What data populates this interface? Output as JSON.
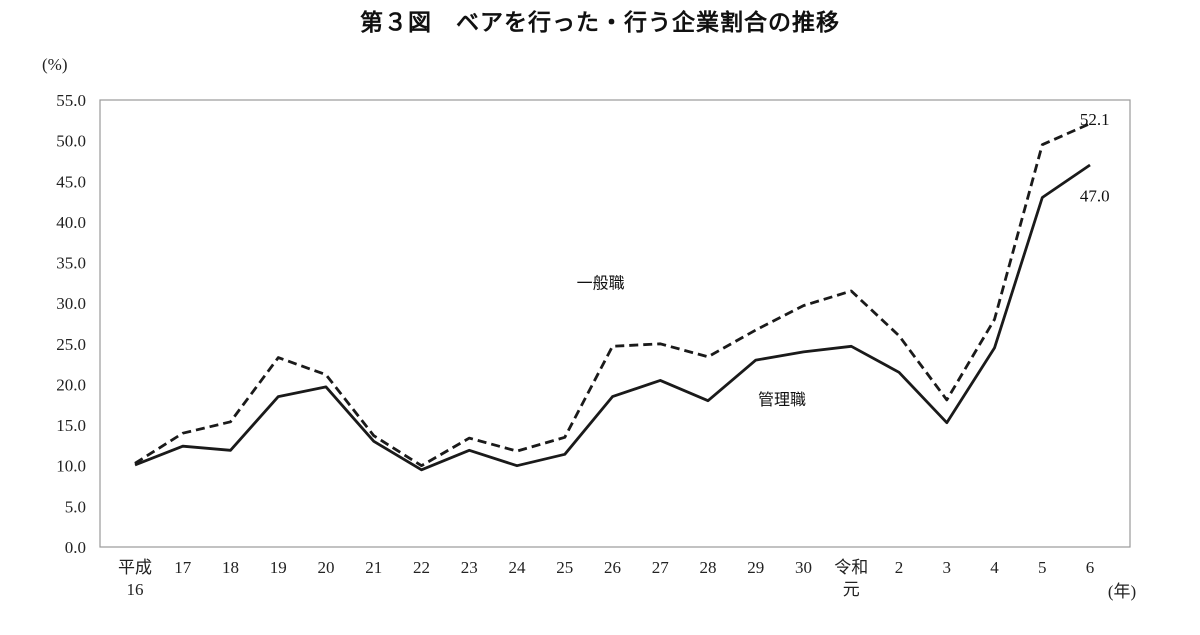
{
  "title": "第３図　ベアを行った・行う企業割合の推移",
  "chart_data": {
    "type": "line",
    "title": "第３図　ベアを行った・行う企業割合の推移",
    "y_unit_label": "(%)",
    "x_unit_label": "(年)",
    "ylim": [
      0,
      55
    ],
    "ytick_step": 5,
    "yticks": [
      "0.0",
      "5.0",
      "10.0",
      "15.0",
      "20.0",
      "25.0",
      "30.0",
      "35.0",
      "40.0",
      "45.0",
      "50.0",
      "55.0"
    ],
    "categories": [
      "平成\n16",
      "17",
      "18",
      "19",
      "20",
      "21",
      "22",
      "23",
      "24",
      "25",
      "26",
      "27",
      "28",
      "29",
      "30",
      "令和\n元",
      "2",
      "3",
      "4",
      "5",
      "6"
    ],
    "grid": false,
    "legend_position": "inline-labels",
    "line_color": "#1a1a1a",
    "series": [
      {
        "name": "一般職",
        "style": "dashed",
        "values": [
          10.3,
          14.0,
          15.4,
          23.3,
          21.2,
          13.7,
          10.0,
          13.4,
          11.8,
          13.5,
          24.7,
          25.0,
          23.4,
          26.7,
          29.7,
          31.5,
          26.0,
          18.1,
          28.0,
          49.5,
          52.1
        ],
        "end_label": "52.1",
        "label_anchor": {
          "x_index": 9.75,
          "y_value": 31.8
        },
        "end_label_pos": {
          "x_index": 20.1,
          "y_value": 51.95
        }
      },
      {
        "name": "管理職",
        "style": "solid",
        "values": [
          10.1,
          12.4,
          11.9,
          18.5,
          19.7,
          13.0,
          9.5,
          11.9,
          10.0,
          11.4,
          18.5,
          20.5,
          18.0,
          23.0,
          24.0,
          24.7,
          21.5,
          15.3,
          24.5,
          43.0,
          47.0
        ],
        "end_label": "47.0",
        "label_anchor": {
          "x_index": 13.55,
          "y_value": 17.5
        },
        "end_label_pos": {
          "x_index": 20.1,
          "y_value": 42.5
        }
      }
    ]
  }
}
